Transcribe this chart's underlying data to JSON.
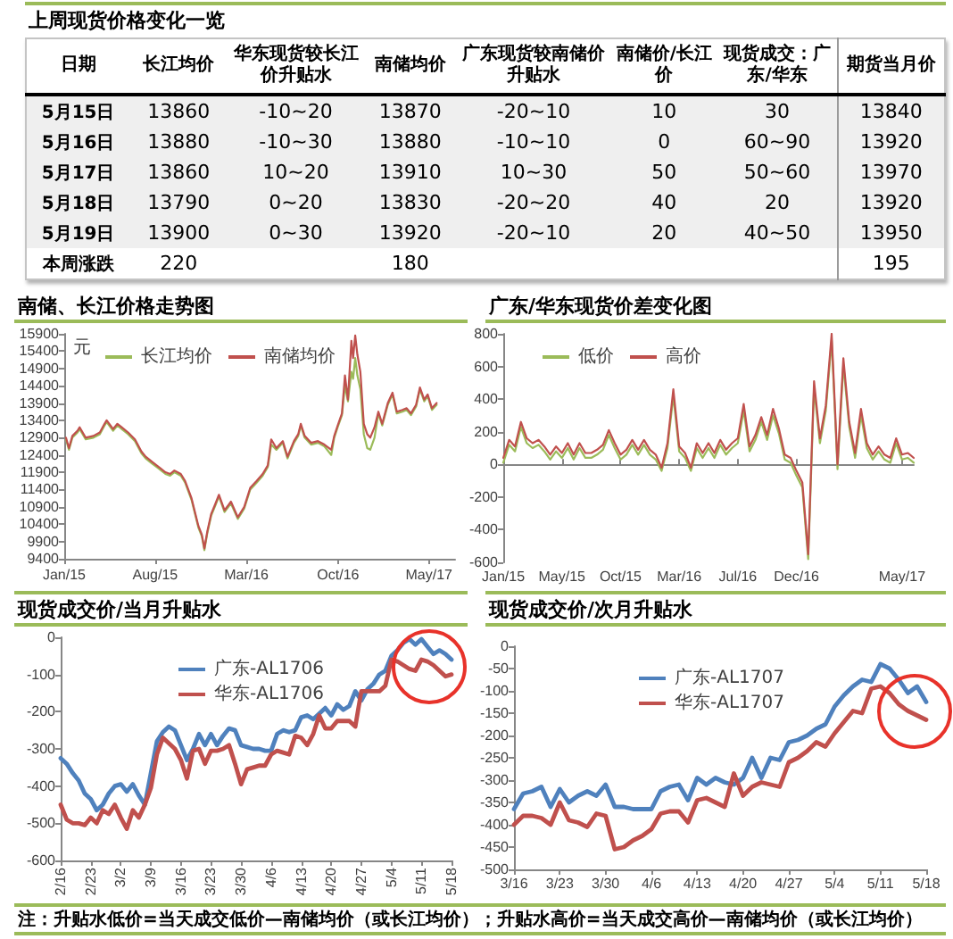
{
  "chart_data": [
    {
      "type": "other",
      "title": "上周现货价格变化一览",
      "ylabel": "日期",
      "categories": [
        "长江均价",
        "华东现货较长江价升贴水",
        "南储均价",
        "广东现货较南储价升贴水",
        "南储价/长江价",
        "现货成交：广东/华东",
        "期货当月价"
      ],
      "y_categories": [
        "5月15日",
        "5月16日",
        "5月17日",
        "5月18日",
        "5月19日",
        "本周涨跌"
      ],
      "cell_labels": [
        [
          "13860",
          "-10~20",
          "13870",
          "-20~10",
          "10",
          "30",
          "13840"
        ],
        [
          "13880",
          "-10~30",
          "13880",
          "-10~10",
          "0",
          "60~90",
          "13920"
        ],
        [
          "13860",
          "10~20",
          "13910",
          "10~30",
          "50",
          "50~60",
          "13970"
        ],
        [
          "13790",
          "0~20",
          "13830",
          "-20~20",
          "40",
          "20",
          "13920"
        ],
        [
          "13900",
          "0~30",
          "13920",
          "-20~10",
          "20",
          "40~50",
          "13950"
        ],
        [
          "220",
          null,
          "180",
          null,
          null,
          null,
          "195"
        ]
      ]
    },
    {
      "type": "line",
      "title": "南储、长江价格走势图",
      "ylabel": "元",
      "x": [
        "2015-01-05",
        "2015-01-12",
        "2015-01-20",
        "2015-02-01",
        "2015-02-06",
        "2015-02-20",
        "2015-03-10",
        "2015-03-25",
        "2015-04-05",
        "2015-04-10",
        "2015-04-25",
        "2015-05-05",
        "2015-05-15",
        "2015-05-30",
        "2015-06-15",
        "2015-06-30",
        "2015-07-10",
        "2015-07-25",
        "2015-08-10",
        "2015-08-25",
        "2015-09-05",
        "2015-09-15",
        "2015-09-30",
        "2015-10-10",
        "2015-10-25",
        "2015-11-02",
        "2015-11-10",
        "2015-11-18",
        "2015-11-24",
        "2015-12-01",
        "2015-12-10",
        "2015-12-20",
        "2015-12-28",
        "2016-01-10",
        "2016-01-25",
        "2016-02-10",
        "2016-02-25",
        "2016-03-10",
        "2016-03-25",
        "2016-04-08",
        "2016-04-20",
        "2016-04-28",
        "2016-05-10",
        "2016-05-25",
        "2016-06-05",
        "2016-06-20",
        "2016-06-30",
        "2016-07-06",
        "2016-07-15",
        "2016-07-30",
        "2016-08-15",
        "2016-08-30",
        "2016-09-15",
        "2016-09-22",
        "2016-09-30",
        "2016-10-10",
        "2016-10-17",
        "2016-10-24",
        "2016-11-01",
        "2016-11-05",
        "2016-11-10",
        "2016-11-15",
        "2016-11-22",
        "2016-11-30",
        "2016-12-08",
        "2016-12-15",
        "2016-12-25",
        "2017-01-03",
        "2017-01-12",
        "2017-01-25",
        "2017-02-05",
        "2017-02-15",
        "2017-02-28",
        "2017-03-10",
        "2017-03-20",
        "2017-04-01",
        "2017-04-10",
        "2017-04-20",
        "2017-04-28",
        "2017-05-08",
        "2017-05-19"
      ],
      "series": [
        {
          "name": "长江均价",
          "color": "#9bbb59",
          "values": [
            12850,
            12550,
            12900,
            13050,
            13150,
            12850,
            12900,
            13000,
            13250,
            13350,
            13100,
            13250,
            13150,
            13000,
            12800,
            12450,
            12300,
            12150,
            12000,
            11850,
            11800,
            11900,
            11800,
            11600,
            11100,
            10700,
            10300,
            10050,
            9650,
            10150,
            10650,
            10950,
            11200,
            10750,
            11000,
            10550,
            10850,
            11400,
            11600,
            11800,
            12050,
            12700,
            12550,
            12750,
            12300,
            12750,
            12950,
            13250,
            12900,
            12700,
            12750,
            12650,
            12400,
            12900,
            13200,
            13550,
            14400,
            13950,
            14800,
            14600,
            15200,
            14700,
            14300,
            13000,
            12600,
            12550,
            12900,
            13600,
            13250,
            13850,
            14150,
            13600,
            13650,
            13700,
            13550,
            13800,
            14300,
            13950,
            14100,
            13700,
            13850
          ]
        },
        {
          "name": "南储均价",
          "color": "#c0504d",
          "values": [
            12900,
            12600,
            12950,
            13100,
            13200,
            12900,
            12950,
            13050,
            13300,
            13400,
            13150,
            13300,
            13200,
            13050,
            12850,
            12500,
            12350,
            12200,
            12050,
            11900,
            11850,
            11950,
            11850,
            11650,
            11150,
            10750,
            10350,
            10100,
            9700,
            10200,
            10700,
            11000,
            11250,
            10800,
            11050,
            10600,
            10900,
            11450,
            11650,
            11850,
            12100,
            12850,
            12600,
            12800,
            12350,
            12800,
            13000,
            13300,
            12950,
            12750,
            12800,
            12700,
            12550,
            12950,
            13250,
            13600,
            14700,
            14000,
            15700,
            15200,
            15850,
            15300,
            14800,
            13300,
            13000,
            12900,
            13200,
            13650,
            13300,
            13900,
            14200,
            13650,
            13700,
            13750,
            13600,
            13850,
            14350,
            14000,
            14150,
            13750,
            13900
          ]
        }
      ],
      "xlim": [
        "2015-01",
        "2017-07"
      ],
      "xticks": [
        {
          "value": "2015-01",
          "label": "Jan/15"
        },
        {
          "value": "2015-08",
          "label": "Aug/15"
        },
        {
          "value": "2016-03",
          "label": "Mar/16"
        },
        {
          "value": "2016-10",
          "label": "Oct/16"
        },
        {
          "value": "2017-05",
          "label": "May/17"
        }
      ],
      "ylim": [
        9400,
        15900
      ],
      "yticks": [
        9400,
        9900,
        10400,
        10900,
        11400,
        11900,
        12400,
        12900,
        13400,
        13900,
        14400,
        14900,
        15400,
        15900
      ],
      "legend": "top"
    },
    {
      "type": "line",
      "title": "广东/华东现货价差变化图",
      "categories": [
        "Jan/15",
        null,
        null,
        null,
        null,
        null,
        null,
        null,
        null,
        null,
        "May/15",
        null,
        null,
        null,
        null,
        null,
        null,
        null,
        null,
        null,
        "Oct/15",
        null,
        null,
        null,
        null,
        null,
        null,
        null,
        null,
        null,
        "Mar/16",
        null,
        null,
        null,
        null,
        null,
        null,
        null,
        null,
        null,
        "Jul/16",
        null,
        null,
        null,
        null,
        null,
        null,
        null,
        null,
        null,
        "Dec/16",
        null,
        null,
        null,
        null,
        null,
        null,
        null,
        null,
        null,
        null,
        null,
        null,
        null,
        null,
        null,
        null,
        null,
        "May/17",
        null,
        null
      ],
      "series": [
        {
          "name": "低价",
          "color": "#9bbb59",
          "values": [
            10,
            120,
            80,
            230,
            130,
            100,
            120,
            80,
            30,
            80,
            40,
            100,
            30,
            100,
            40,
            40,
            60,
            90,
            180,
            100,
            30,
            60,
            120,
            60,
            120,
            60,
            30,
            -40,
            100,
            420,
            80,
            40,
            -40,
            100,
            40,
            100,
            40,
            120,
            60,
            100,
            130,
            330,
            80,
            150,
            260,
            150,
            300,
            190,
            30,
            10,
            -70,
            -140,
            -580,
            470,
            130,
            330,
            760,
            -30,
            610,
            230,
            40,
            300,
            100,
            30,
            80,
            30,
            10,
            130,
            30,
            40,
            10
          ]
        },
        {
          "name": "高价",
          "color": "#c0504d",
          "values": [
            40,
            150,
            110,
            260,
            160,
            130,
            150,
            110,
            60,
            110,
            70,
            130,
            60,
            130,
            70,
            70,
            90,
            120,
            210,
            130,
            60,
            90,
            150,
            90,
            150,
            90,
            60,
            -20,
            130,
            460,
            110,
            70,
            -20,
            130,
            70,
            130,
            70,
            150,
            90,
            130,
            160,
            370,
            110,
            180,
            290,
            180,
            340,
            220,
            60,
            40,
            -40,
            -110,
            -550,
            510,
            160,
            360,
            800,
            0,
            650,
            260,
            70,
            340,
            130,
            60,
            110,
            60,
            40,
            160,
            60,
            70,
            40
          ]
        }
      ],
      "ylim": [
        -600,
        800
      ],
      "yticks": [
        -600,
        -400,
        -200,
        0,
        200,
        400,
        600,
        800
      ],
      "legend": "top"
    },
    {
      "type": "line",
      "title": "现货成交价/当月升贴水",
      "categories": [
        "2/16",
        null,
        null,
        null,
        null,
        "2/23",
        null,
        null,
        null,
        null,
        "3/2",
        null,
        null,
        null,
        null,
        "3/9",
        null,
        null,
        null,
        null,
        "3/16",
        null,
        null,
        null,
        null,
        "3/23",
        null,
        null,
        null,
        null,
        "3/30",
        null,
        null,
        null,
        null,
        "4/6",
        null,
        null,
        null,
        null,
        "4/13",
        null,
        null,
        null,
        null,
        "4/20",
        null,
        null,
        null,
        null,
        "4/27",
        null,
        null,
        null,
        null,
        "5/4",
        null,
        null,
        null,
        null,
        "5/11",
        null,
        null,
        null,
        null,
        "5/18"
      ],
      "series": [
        {
          "name": "广东-AL1706",
          "color": "#4f81bd",
          "values": [
            -325,
            -340,
            -365,
            -385,
            -420,
            -435,
            -465,
            -450,
            -420,
            -400,
            -395,
            -415,
            -395,
            -425,
            -450,
            -365,
            -280,
            -255,
            -240,
            -250,
            -290,
            -330,
            -300,
            -260,
            -290,
            -260,
            -290,
            -265,
            -245,
            -250,
            -290,
            -295,
            -300,
            -300,
            -305,
            -305,
            -260,
            -250,
            -255,
            -250,
            -215,
            -210,
            -220,
            -205,
            -190,
            -210,
            -180,
            -195,
            -185,
            -145,
            -170,
            -140,
            -125,
            -100,
            -90,
            -50,
            -35,
            -15,
            -5,
            -20,
            -5,
            -25,
            -45,
            -35,
            -45,
            -60
          ]
        },
        {
          "name": "华东-AL1706",
          "color": "#c0504d",
          "values": [
            -450,
            -490,
            -500,
            -500,
            -505,
            -485,
            -500,
            -465,
            -475,
            -450,
            -485,
            -515,
            -465,
            -485,
            -450,
            -405,
            -315,
            -270,
            -285,
            -300,
            -330,
            -380,
            -305,
            -300,
            -340,
            -305,
            -305,
            -300,
            -290,
            -340,
            -395,
            -355,
            -350,
            -345,
            -345,
            -315,
            -305,
            -310,
            -315,
            -265,
            -270,
            -290,
            -260,
            -210,
            -245,
            -245,
            -225,
            -225,
            -225,
            -240,
            -145,
            -145,
            -145,
            -145,
            -130,
            -60,
            -65,
            -75,
            -85,
            -90,
            -60,
            -65,
            -75,
            -90,
            -105,
            -100
          ]
        }
      ],
      "ylim": [
        -600,
        0
      ],
      "yticks": [
        -600,
        -500,
        -400,
        -300,
        -200,
        -100,
        0
      ],
      "legend": "top left"
    },
    {
      "type": "line",
      "title": "现货成交价/次月升贴水",
      "categories": [
        "3/16",
        null,
        null,
        null,
        null,
        "3/23",
        null,
        null,
        null,
        null,
        "3/30",
        null,
        null,
        null,
        null,
        "4/6",
        null,
        null,
        null,
        null,
        "4/13",
        null,
        null,
        null,
        null,
        "4/20",
        null,
        null,
        null,
        null,
        "4/27",
        null,
        null,
        null,
        null,
        "5/4",
        null,
        null,
        null,
        null,
        "5/11",
        null,
        null,
        null,
        null,
        "5/18"
      ],
      "series": [
        {
          "name": "广东-AL1707",
          "color": "#4f81bd",
          "values": [
            -365,
            -330,
            -325,
            -315,
            -360,
            -320,
            -350,
            -335,
            -325,
            -335,
            -310,
            -360,
            -360,
            -365,
            -365,
            -365,
            -325,
            -315,
            -310,
            -345,
            -295,
            -310,
            -295,
            -305,
            -310,
            -295,
            -250,
            -295,
            -250,
            -255,
            -215,
            -210,
            -200,
            -185,
            -175,
            -135,
            -110,
            -90,
            -75,
            -80,
            -40,
            -50,
            -75,
            -105,
            -90,
            -125
          ]
        },
        {
          "name": "华东-AL1707",
          "color": "#c0504d",
          "values": [
            -400,
            -380,
            -380,
            -385,
            -400,
            -350,
            -390,
            -395,
            -405,
            -375,
            -380,
            -455,
            -450,
            -435,
            -425,
            -410,
            -375,
            -370,
            -370,
            -395,
            -345,
            -340,
            -350,
            -360,
            -285,
            -335,
            -315,
            -305,
            -310,
            -315,
            -260,
            -250,
            -235,
            -215,
            -225,
            -195,
            -170,
            -145,
            -150,
            -95,
            -90,
            -105,
            -130,
            -145,
            -155,
            -165
          ]
        }
      ],
      "ylim": [
        -500,
        0
      ],
      "yticks": [
        -500,
        -450,
        -400,
        -350,
        -300,
        -250,
        -200,
        -150,
        -100,
        -50,
        0
      ],
      "legend": "top left",
      "annotations": [
        "注：升贴水低价=当天成交低价—南储均价（或长江均价）；升贴水高价=当天成交高价—南储均价（或长江均价）"
      ]
    }
  ]
}
